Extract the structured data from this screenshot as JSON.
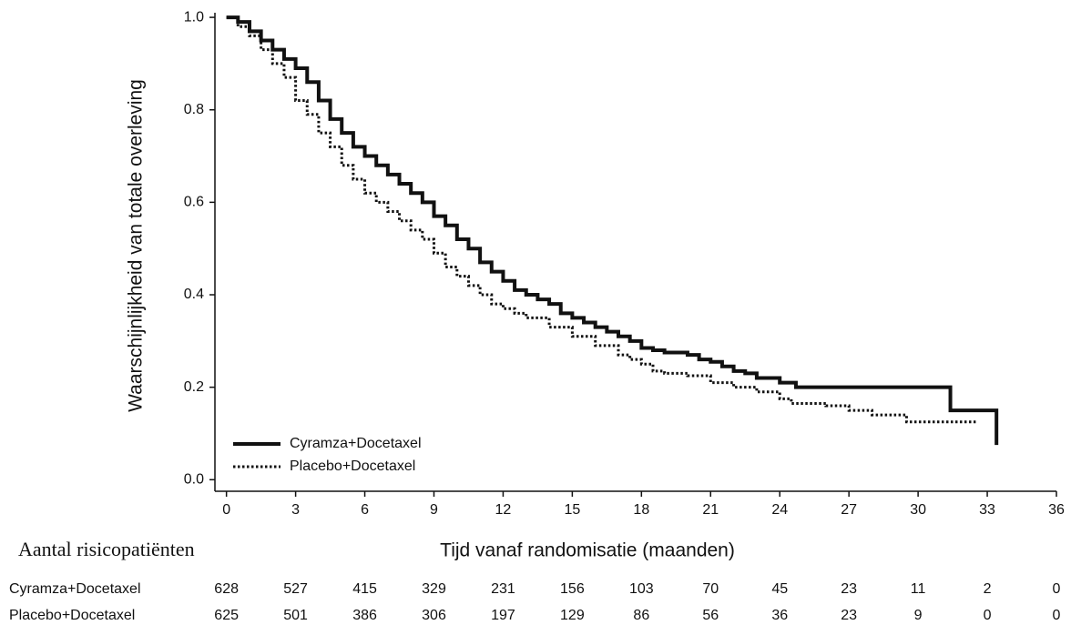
{
  "chart_data": {
    "type": "step",
    "y_label": "Waarschijnlijkheid van totale overleving",
    "x_label": "Tijd vanaf randomisatie (maanden)",
    "xlim": [
      -0.5,
      36
    ],
    "ylim": [
      -0.025,
      1.01
    ],
    "xticks": [
      0,
      3,
      6,
      9,
      12,
      15,
      18,
      21,
      24,
      27,
      30,
      33,
      36
    ],
    "yticks": [
      {
        "value": 0,
        "label": "0.0"
      },
      {
        "value": 0.2,
        "label": "0.2"
      },
      {
        "value": 0.4,
        "label": "0.4"
      },
      {
        "value": 0.6,
        "label": "0.6"
      },
      {
        "value": 0.8,
        "label": "0.8"
      },
      {
        "value": 1,
        "label": "1.0"
      }
    ],
    "legend": "lower left",
    "series": [
      {
        "name": "Cyramza+Docetaxel",
        "color": "#111111",
        "dash": "solid",
        "x": [
          0,
          0.5,
          1,
          1.5,
          2,
          2.5,
          3,
          3.5,
          4,
          4.5,
          5,
          5.5,
          6,
          6.5,
          7,
          7.5,
          8,
          8.5,
          9,
          9.5,
          10,
          10.5,
          11,
          11.5,
          12,
          12.5,
          13,
          13.5,
          14,
          14.5,
          15,
          15.5,
          16,
          16.5,
          17,
          17.5,
          18,
          18.5,
          19,
          20,
          20.5,
          21,
          21.5,
          22,
          22.5,
          23,
          24,
          24.7,
          31.4,
          33.4
        ],
        "values": [
          1.0,
          0.99,
          0.97,
          0.95,
          0.93,
          0.91,
          0.89,
          0.86,
          0.82,
          0.78,
          0.75,
          0.72,
          0.7,
          0.68,
          0.66,
          0.64,
          0.62,
          0.6,
          0.57,
          0.55,
          0.52,
          0.5,
          0.47,
          0.45,
          0.43,
          0.41,
          0.4,
          0.39,
          0.38,
          0.36,
          0.35,
          0.34,
          0.33,
          0.32,
          0.31,
          0.3,
          0.285,
          0.28,
          0.275,
          0.27,
          0.26,
          0.255,
          0.245,
          0.235,
          0.23,
          0.22,
          0.21,
          0.2,
          0.15,
          0.075
        ]
      },
      {
        "name": "Placebo+Docetaxel",
        "color": "#111111",
        "dash": "dotted",
        "x": [
          0,
          0.5,
          1,
          1.5,
          2,
          2.5,
          3,
          3.5,
          4,
          4.5,
          5,
          5.5,
          6,
          6.5,
          7,
          7.5,
          8,
          8.5,
          9,
          9.5,
          10,
          10.5,
          11,
          11.5,
          12,
          12.5,
          13,
          14,
          15,
          16,
          17,
          17.5,
          18,
          18.5,
          19,
          20,
          21,
          22,
          23,
          24,
          24.5,
          26,
          27,
          28,
          29.5,
          32.5
        ],
        "values": [
          1.0,
          0.98,
          0.96,
          0.93,
          0.9,
          0.87,
          0.82,
          0.79,
          0.75,
          0.72,
          0.68,
          0.65,
          0.62,
          0.6,
          0.58,
          0.56,
          0.54,
          0.52,
          0.49,
          0.46,
          0.44,
          0.42,
          0.4,
          0.38,
          0.37,
          0.36,
          0.35,
          0.33,
          0.31,
          0.29,
          0.27,
          0.26,
          0.25,
          0.235,
          0.23,
          0.225,
          0.21,
          0.2,
          0.19,
          0.175,
          0.165,
          0.16,
          0.15,
          0.14,
          0.125,
          0.125
        ]
      }
    ],
    "risk_table": {
      "title": "Aantal risicopatiënten",
      "rows": [
        {
          "name": "Cyramza+Docetaxel",
          "values": [
            628,
            527,
            415,
            329,
            231,
            156,
            103,
            70,
            45,
            23,
            11,
            2,
            0
          ]
        },
        {
          "name": "Placebo+Docetaxel",
          "values": [
            625,
            501,
            386,
            306,
            197,
            129,
            86,
            56,
            36,
            23,
            9,
            0,
            0
          ]
        }
      ]
    }
  }
}
